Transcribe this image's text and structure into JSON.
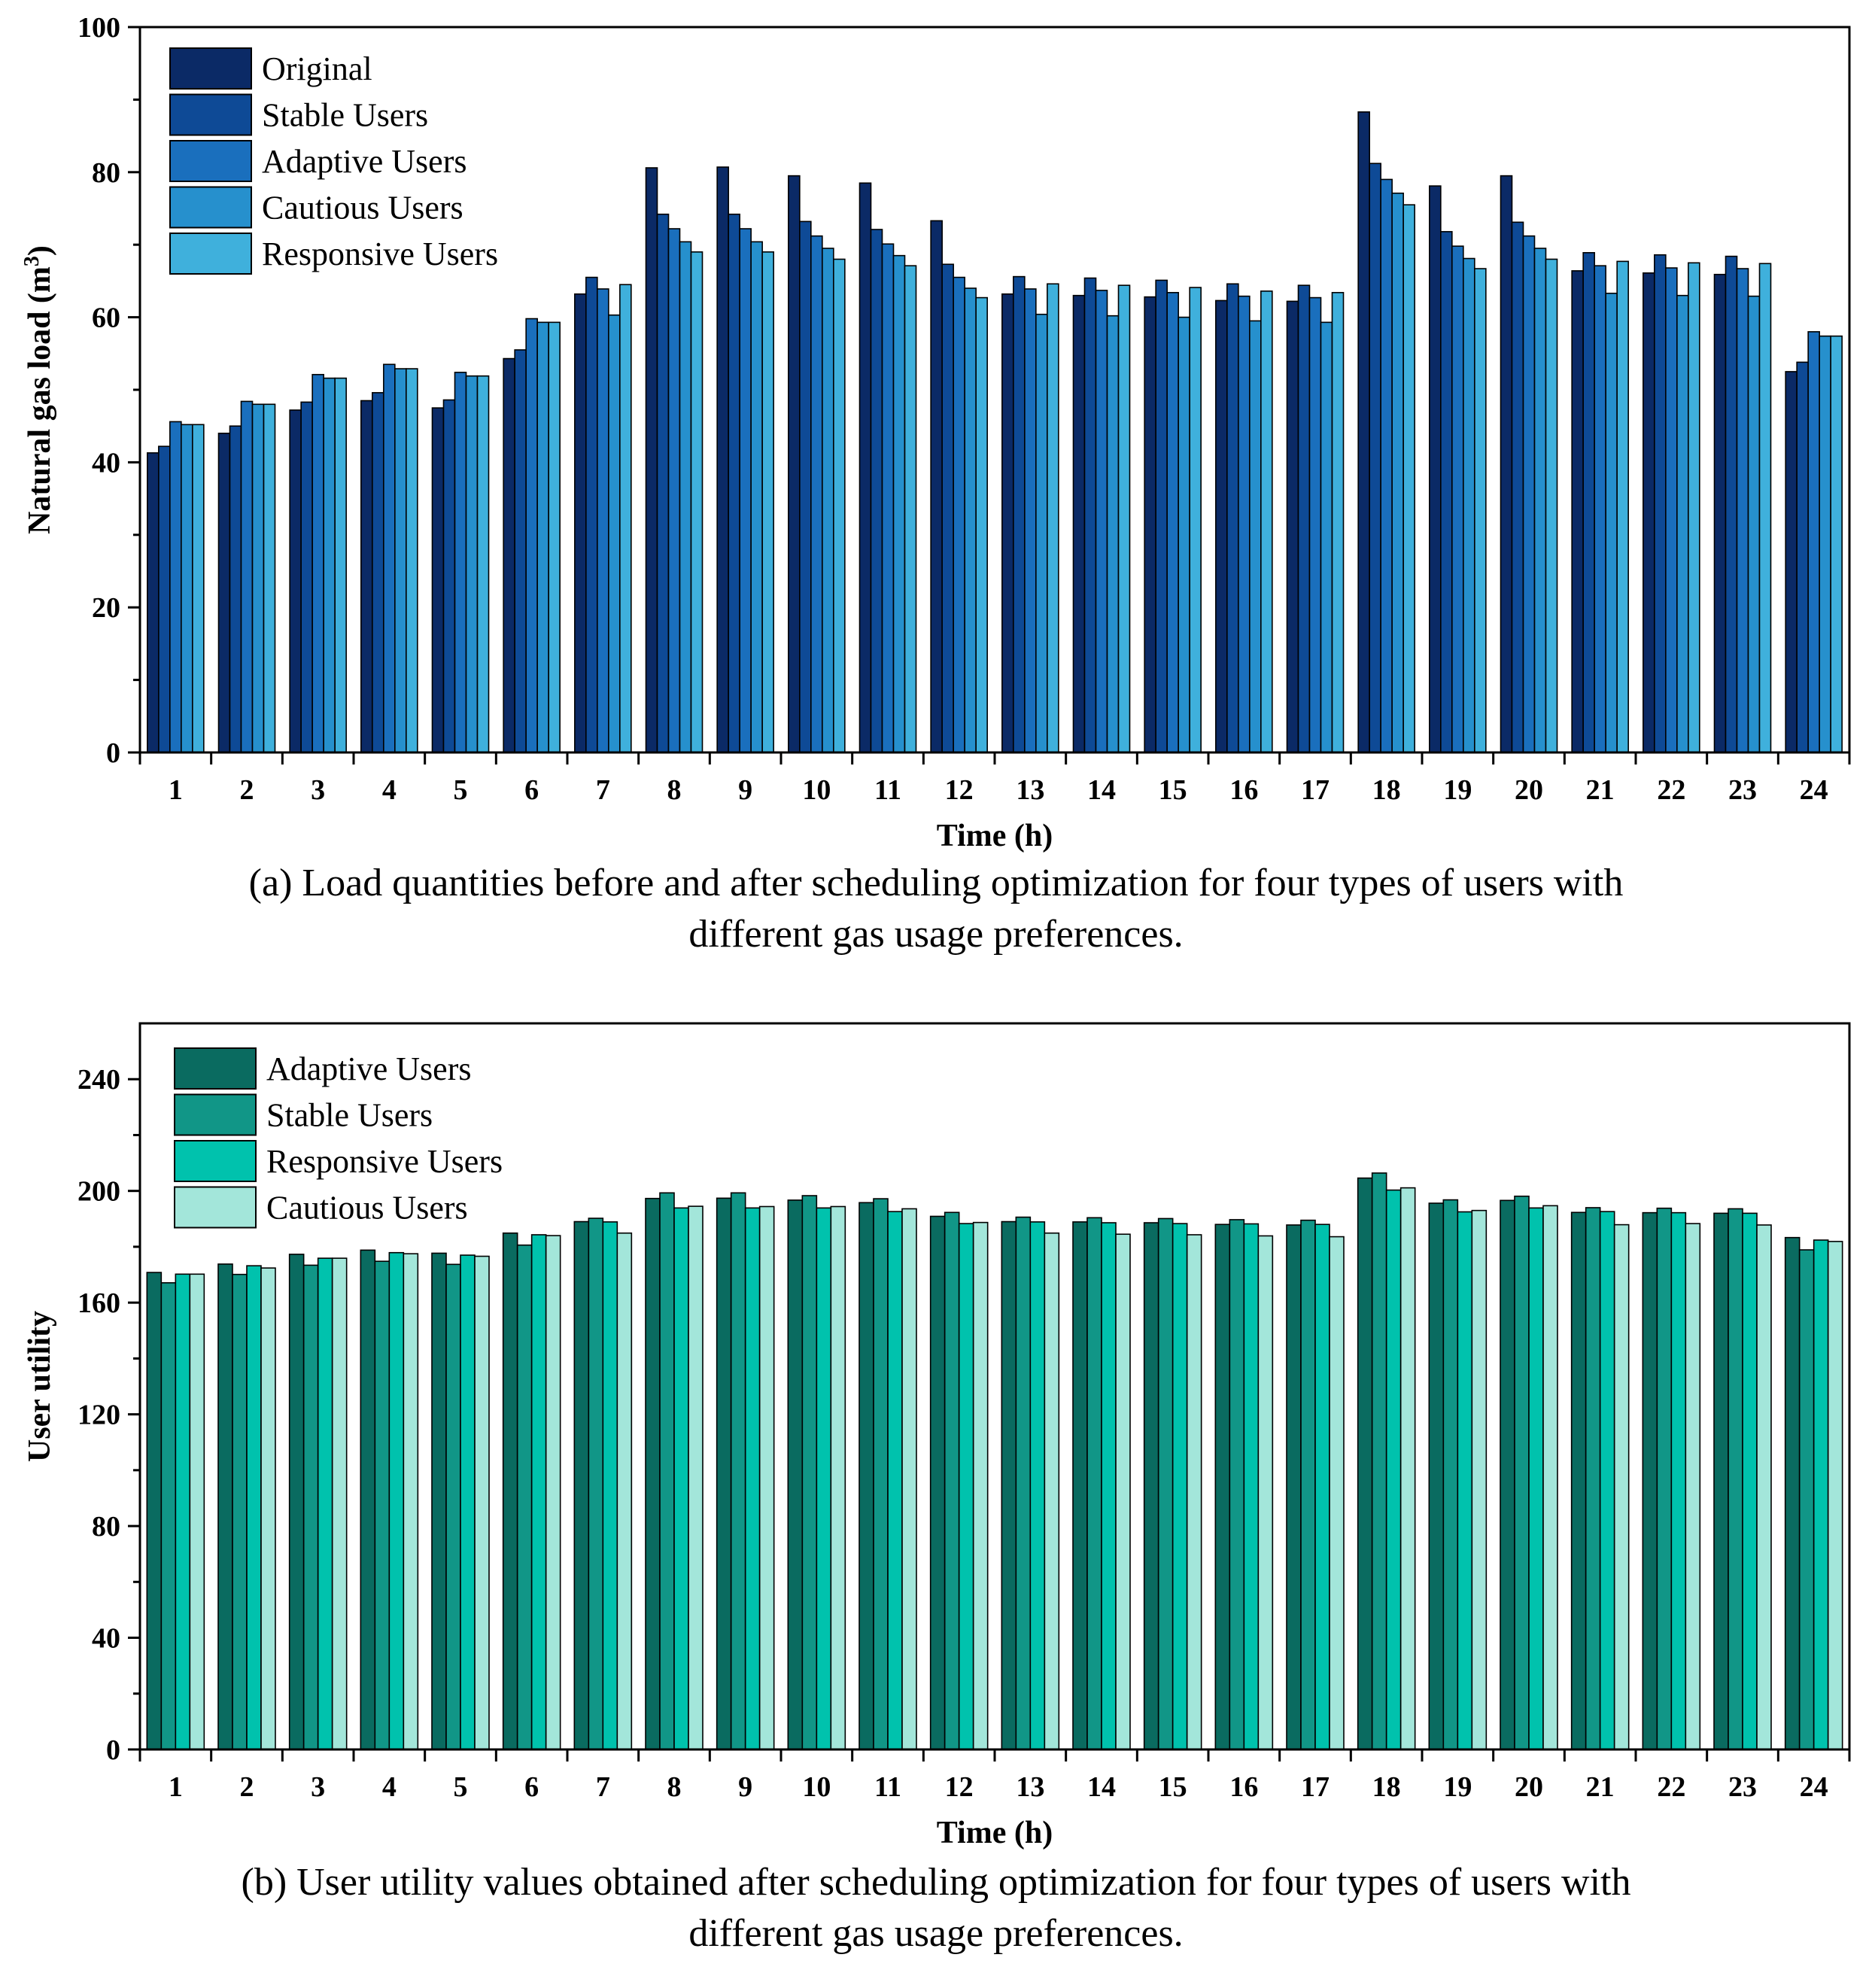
{
  "chart_data": [
    {
      "id": "a",
      "type": "bar",
      "title": "",
      "xlabel": "Time (h)",
      "ylabel": "Natural gas load (m",
      "ylabel_sup": "3",
      "ylabel_end": ")",
      "ylim": [
        0,
        100
      ],
      "yticks": [
        0,
        20,
        40,
        60,
        80,
        100
      ],
      "grid": false,
      "legend": "top-left",
      "categories": [
        "1",
        "2",
        "3",
        "4",
        "5",
        "6",
        "7",
        "8",
        "9",
        "10",
        "11",
        "12",
        "13",
        "14",
        "15",
        "16",
        "17",
        "18",
        "19",
        "20",
        "21",
        "22",
        "23",
        "24"
      ],
      "series": [
        {
          "name": "Original",
          "color": "#0b2a66",
          "values": [
            41.3,
            44.0,
            47.2,
            48.5,
            47.5,
            54.3,
            63.2,
            80.6,
            80.7,
            79.5,
            78.5,
            73.3,
            63.2,
            63.0,
            62.8,
            62.3,
            62.2,
            88.3,
            78.1,
            79.5,
            66.4,
            66.1,
            65.9,
            52.5
          ]
        },
        {
          "name": "Stable Users",
          "color": "#0e4a96",
          "values": [
            42.2,
            45.0,
            48.3,
            49.6,
            48.6,
            55.5,
            65.5,
            74.2,
            74.2,
            73.2,
            72.1,
            67.3,
            65.6,
            65.4,
            65.1,
            64.6,
            64.4,
            81.2,
            71.8,
            73.1,
            68.9,
            68.6,
            68.4,
            53.8
          ]
        },
        {
          "name": "Adaptive Users",
          "color": "#1a6fbd",
          "values": [
            45.6,
            48.4,
            52.1,
            53.5,
            52.4,
            59.8,
            63.9,
            72.2,
            72.2,
            71.2,
            70.1,
            65.5,
            63.9,
            63.7,
            63.4,
            62.9,
            62.7,
            79.0,
            69.8,
            71.2,
            67.1,
            66.8,
            66.7,
            58.0
          ]
        },
        {
          "name": "Cautious Users",
          "color": "#2690cd",
          "values": [
            45.2,
            48.0,
            51.6,
            52.9,
            51.9,
            59.3,
            60.3,
            70.4,
            70.4,
            69.5,
            68.5,
            64.0,
            60.4,
            60.2,
            60.0,
            59.5,
            59.3,
            77.1,
            68.1,
            69.5,
            63.3,
            63.0,
            62.9,
            57.4
          ]
        },
        {
          "name": "Responsive Users",
          "color": "#3fb0dc",
          "values": [
            45.2,
            48.0,
            51.6,
            52.9,
            51.9,
            59.3,
            64.5,
            69.0,
            69.0,
            68.0,
            67.1,
            62.7,
            64.6,
            64.4,
            64.1,
            63.6,
            63.4,
            75.5,
            66.7,
            68.0,
            67.7,
            67.5,
            67.4,
            57.4
          ]
        }
      ]
    },
    {
      "id": "b",
      "type": "bar",
      "title": "",
      "xlabel": "Time (h)",
      "ylabel": "User utility",
      "ylim": [
        0,
        260
      ],
      "yticks": [
        0,
        40,
        80,
        120,
        160,
        200,
        240
      ],
      "grid": false,
      "legend": "top-left",
      "categories": [
        "1",
        "2",
        "3",
        "4",
        "5",
        "6",
        "7",
        "8",
        "9",
        "10",
        "11",
        "12",
        "13",
        "14",
        "15",
        "16",
        "17",
        "18",
        "19",
        "20",
        "21",
        "22",
        "23",
        "24"
      ],
      "series": [
        {
          "name": "Adaptive Users",
          "color": "#0a6b60",
          "values": [
            170.8,
            173.8,
            177.3,
            178.8,
            177.7,
            184.9,
            189.0,
            197.3,
            197.4,
            196.7,
            195.8,
            190.9,
            189.0,
            188.9,
            188.6,
            188.0,
            187.8,
            204.6,
            195.6,
            196.6,
            192.3,
            192.2,
            192.0,
            183.3
          ]
        },
        {
          "name": "Stable Users",
          "color": "#119687",
          "values": [
            167.1,
            170.1,
            173.4,
            174.8,
            173.7,
            180.6,
            190.2,
            199.3,
            199.3,
            198.3,
            197.2,
            192.3,
            190.6,
            190.4,
            190.1,
            189.7,
            189.5,
            206.4,
            196.8,
            198.1,
            194.0,
            193.8,
            193.6,
            178.9
          ]
        },
        {
          "name": "Responsive Users",
          "color": "#00c2ad",
          "values": [
            170.2,
            173.2,
            175.9,
            177.9,
            177.0,
            184.3,
            188.9,
            193.9,
            193.9,
            193.9,
            192.6,
            188.3,
            188.9,
            188.6,
            188.3,
            188.2,
            188.0,
            200.3,
            192.5,
            193.9,
            192.6,
            192.2,
            192.0,
            182.4
          ]
        },
        {
          "name": "Cautious Users",
          "color": "#a3e6da",
          "values": [
            170.2,
            172.4,
            175.9,
            177.5,
            176.6,
            184.0,
            184.9,
            194.5,
            194.4,
            194.4,
            193.6,
            188.7,
            184.9,
            184.5,
            184.3,
            183.9,
            183.6,
            201.1,
            193.0,
            194.7,
            187.9,
            188.3,
            187.8,
            181.9
          ]
        }
      ]
    }
  ],
  "captions": {
    "a_line1": "(a) Load quantities before and after scheduling optimization for four types of users with",
    "a_line2": "different gas usage preferences.",
    "b_line1": "(b) User utility values obtained after scheduling optimization for four types of users with",
    "b_line2": "different gas usage preferences."
  }
}
